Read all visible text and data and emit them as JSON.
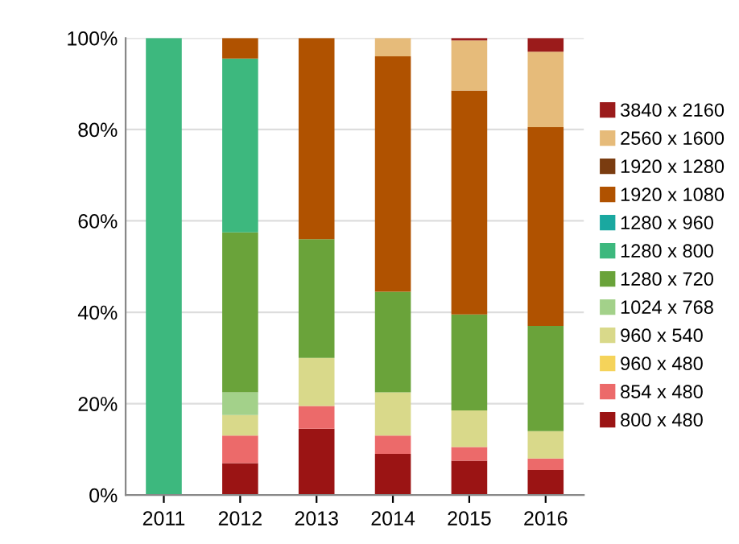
{
  "chart_data": {
    "type": "bar",
    "stacked": true,
    "categories": [
      "2011",
      "2012",
      "2013",
      "2014",
      "2015",
      "2016"
    ],
    "series": [
      {
        "name": "800 x 480",
        "color": "#9b1414",
        "values": [
          0,
          7,
          14.5,
          9,
          7.5,
          5.5
        ]
      },
      {
        "name": "854 x 480",
        "color": "#ec6a6a",
        "values": [
          0,
          6,
          5,
          4,
          3,
          2.5
        ]
      },
      {
        "name": "960 x 480",
        "color": "#f5d35a",
        "values": [
          0,
          0,
          0,
          0,
          0,
          0
        ]
      },
      {
        "name": "960 x 540",
        "color": "#d9d98a",
        "values": [
          0,
          4.5,
          10.5,
          9.5,
          8,
          6
        ]
      },
      {
        "name": "1024 x 768",
        "color": "#a3d18a",
        "values": [
          0,
          5,
          0,
          0,
          0,
          0
        ]
      },
      {
        "name": "1280 x 720",
        "color": "#6aa33a",
        "values": [
          0,
          35,
          26,
          22,
          21,
          23
        ]
      },
      {
        "name": "1280 x 800",
        "color": "#3db87e",
        "values": [
          100,
          38,
          0,
          0,
          0,
          0
        ]
      },
      {
        "name": "1280 x 960",
        "color": "#1aa8a0",
        "values": [
          0,
          0,
          0,
          0,
          0,
          0
        ]
      },
      {
        "name": "1920 x 1080",
        "color": "#b05200",
        "values": [
          0,
          4.5,
          44,
          51.5,
          49,
          43.5
        ]
      },
      {
        "name": "1920 x 1280",
        "color": "#7a3c10",
        "values": [
          0,
          0,
          0,
          0,
          0,
          0
        ]
      },
      {
        "name": "2560 x 1600",
        "color": "#e6bb7a",
        "values": [
          0,
          0,
          0,
          4,
          11,
          16.5
        ]
      },
      {
        "name": "3840 x 2160",
        "color": "#9b1b1b",
        "values": [
          0,
          0,
          0,
          0,
          0.5,
          3
        ]
      }
    ],
    "ylim": [
      0,
      100
    ],
    "yticks": [
      {
        "value": 0,
        "label": "0%"
      },
      {
        "value": 20,
        "label": "20%"
      },
      {
        "value": 40,
        "label": "40%"
      },
      {
        "value": 60,
        "label": "60%"
      },
      {
        "value": 80,
        "label": "80%"
      },
      {
        "value": 100,
        "label": "100%"
      }
    ],
    "grid": "y",
    "legend": "right"
  }
}
